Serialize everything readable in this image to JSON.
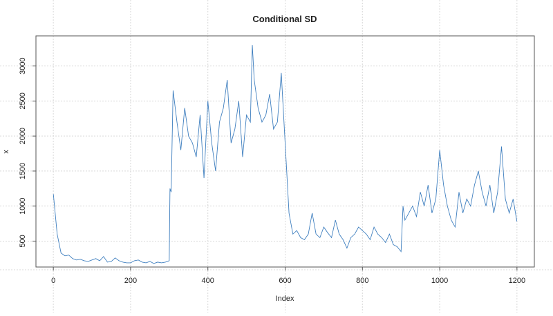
{
  "chart_data": {
    "type": "line",
    "title": "Conditional SD",
    "xlabel": "Index",
    "ylabel": "x",
    "xlim": [
      -45,
      1245
    ],
    "ylim": [
      130,
      3430
    ],
    "xticks": [
      0,
      200,
      400,
      600,
      800,
      1000,
      1200
    ],
    "yticks": [
      500,
      1000,
      1500,
      2000,
      2500,
      3000
    ],
    "grid": true,
    "line_color": "#3f7fbf",
    "series": [
      {
        "name": "x",
        "x": [
          0,
          10,
          20,
          30,
          40,
          50,
          60,
          70,
          80,
          90,
          100,
          110,
          120,
          130,
          140,
          150,
          160,
          170,
          180,
          190,
          200,
          210,
          220,
          230,
          240,
          250,
          260,
          270,
          280,
          290,
          300,
          302,
          305,
          310,
          320,
          330,
          340,
          350,
          360,
          370,
          380,
          390,
          400,
          410,
          420,
          430,
          440,
          450,
          460,
          470,
          480,
          490,
          500,
          510,
          515,
          520,
          530,
          540,
          550,
          560,
          570,
          580,
          590,
          600,
          610,
          620,
          630,
          640,
          650,
          660,
          670,
          680,
          690,
          700,
          710,
          720,
          730,
          740,
          750,
          760,
          770,
          780,
          790,
          800,
          810,
          820,
          830,
          840,
          850,
          860,
          870,
          880,
          890,
          900,
          905,
          910,
          920,
          930,
          940,
          950,
          960,
          970,
          980,
          990,
          1000,
          1010,
          1020,
          1030,
          1040,
          1050,
          1060,
          1070,
          1080,
          1090,
          1100,
          1110,
          1120,
          1130,
          1140,
          1150,
          1160,
          1170,
          1180,
          1190,
          1200
        ],
        "y": [
          1170,
          600,
          330,
          290,
          300,
          250,
          230,
          240,
          220,
          210,
          230,
          250,
          220,
          280,
          200,
          210,
          260,
          220,
          200,
          190,
          190,
          220,
          230,
          200,
          190,
          210,
          180,
          200,
          190,
          200,
          220,
          1250,
          1200,
          2650,
          2200,
          1800,
          2400,
          2000,
          1900,
          1700,
          2300,
          1400,
          2500,
          1900,
          1500,
          2200,
          2400,
          2800,
          1900,
          2100,
          2500,
          1700,
          2300,
          2200,
          3300,
          2800,
          2400,
          2200,
          2300,
          2600,
          2100,
          2200,
          2900,
          1900,
          900,
          600,
          650,
          550,
          520,
          600,
          900,
          600,
          550,
          700,
          620,
          550,
          800,
          600,
          520,
          400,
          550,
          600,
          700,
          650,
          600,
          520,
          700,
          600,
          550,
          480,
          600,
          450,
          420,
          350,
          1000,
          800,
          900,
          1000,
          850,
          1200,
          1000,
          1300,
          900,
          1100,
          1800,
          1300,
          1000,
          800,
          700,
          1200,
          900,
          1100,
          1000,
          1300,
          1500,
          1200,
          1000,
          1300,
          900,
          1200,
          1850,
          1100,
          900,
          1100,
          780
        ]
      }
    ]
  }
}
